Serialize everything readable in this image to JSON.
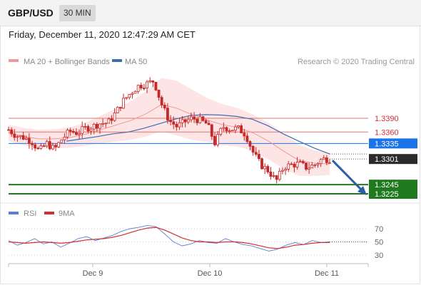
{
  "header": {
    "pair": "GBP/USD",
    "timeframe": "30 MIN"
  },
  "timestamp": "Friday, December 11, 2020 12:47:29 AM CET",
  "legend": {
    "ma20": "MA 20 + Bollinger Bands",
    "ma50": "MA 50",
    "credit": "Research © 2020 Trading Central",
    "rsi": "RSI",
    "rsi_ma": "9MA"
  },
  "colors": {
    "candle": "#c62828",
    "ma20": "#ef9a9a",
    "bollinger_fill": "#fde2e2",
    "ma50": "#3d6db5",
    "pivot_blue": "#1a73e8",
    "current_price": "#2b2b2b",
    "support_green": "#1f7a1f",
    "resistance_red": "#e57373",
    "rsi": "#5b7fd6",
    "rsi_ma": "#d32f2f",
    "arrow": "#2c5ea8"
  },
  "chart_data": [
    {
      "type": "candlestick",
      "title": "GBP/USD",
      "x_ticks": [
        "Dec 9",
        "Dec 10",
        "Dec 11"
      ],
      "levels": [
        {
          "label": "1.3390",
          "value": 1.339,
          "kind": "resistance"
        },
        {
          "label": "1.3360",
          "value": 1.336,
          "kind": "resistance"
        },
        {
          "label": "1.3335",
          "value": 1.3335,
          "kind": "pivot"
        },
        {
          "label": "1.3301",
          "value": 1.3301,
          "kind": "current"
        },
        {
          "label": "1.3245",
          "value": 1.3245,
          "kind": "support"
        },
        {
          "label": "1.3225",
          "value": 1.3225,
          "kind": "support"
        }
      ],
      "close_path": [
        1.3365,
        1.3352,
        1.3348,
        1.334,
        1.3318,
        1.3335,
        1.3322,
        1.3345,
        1.3362,
        1.3358,
        1.3368,
        1.3372,
        1.3379,
        1.338,
        1.3402,
        1.3428,
        1.3446,
        1.3461,
        1.3465,
        1.3472,
        1.3421,
        1.3385,
        1.3372,
        1.3382,
        1.339,
        1.3386,
        1.3377,
        1.3335,
        1.3372,
        1.3366,
        1.3368,
        1.3355,
        1.3315,
        1.3288,
        1.3275,
        1.3253,
        1.3284,
        1.3288,
        1.3291,
        1.3282,
        1.3288,
        1.3301,
        1.3301
      ],
      "ma20_path": [
        1.3358,
        1.335,
        1.3345,
        1.3345,
        1.3348,
        1.3355,
        1.3365,
        1.3375,
        1.3385,
        1.34,
        1.342,
        1.3412,
        1.3398,
        1.3386,
        1.3376,
        1.337,
        1.3358,
        1.334,
        1.3318,
        1.3298,
        1.3292,
        1.329
      ],
      "ma50_path": [
        1.334,
        1.3345,
        1.335,
        1.3356,
        1.336,
        1.3368,
        1.3378,
        1.3388,
        1.3396,
        1.3398,
        1.3397,
        1.3394,
        1.3388,
        1.3374,
        1.3356,
        1.334,
        1.3325,
        1.3312
      ],
      "forecast_target": 1.3225
    },
    {
      "type": "line",
      "title": "RSI",
      "y_ticks": [
        70,
        50,
        30
      ],
      "ylim": [
        20,
        80
      ],
      "series": [
        {
          "name": "RSI",
          "values": [
            52,
            45,
            49,
            55,
            47,
            50,
            42,
            48,
            55,
            58,
            52,
            56,
            60,
            66,
            70,
            72,
            75,
            73,
            62,
            50,
            44,
            47,
            52,
            49,
            48,
            55,
            50,
            46,
            44,
            40,
            36,
            39,
            45,
            49,
            46,
            52,
            49,
            50
          ]
        },
        {
          "name": "9MA",
          "values": [
            50,
            49,
            48,
            49,
            50,
            49,
            48,
            49,
            51,
            53,
            54,
            55,
            57,
            60,
            64,
            68,
            71,
            72,
            68,
            62,
            56,
            52,
            50,
            50,
            49,
            50,
            50,
            49,
            47,
            44,
            41,
            40,
            42,
            45,
            46,
            48,
            49,
            49
          ]
        }
      ]
    }
  ]
}
